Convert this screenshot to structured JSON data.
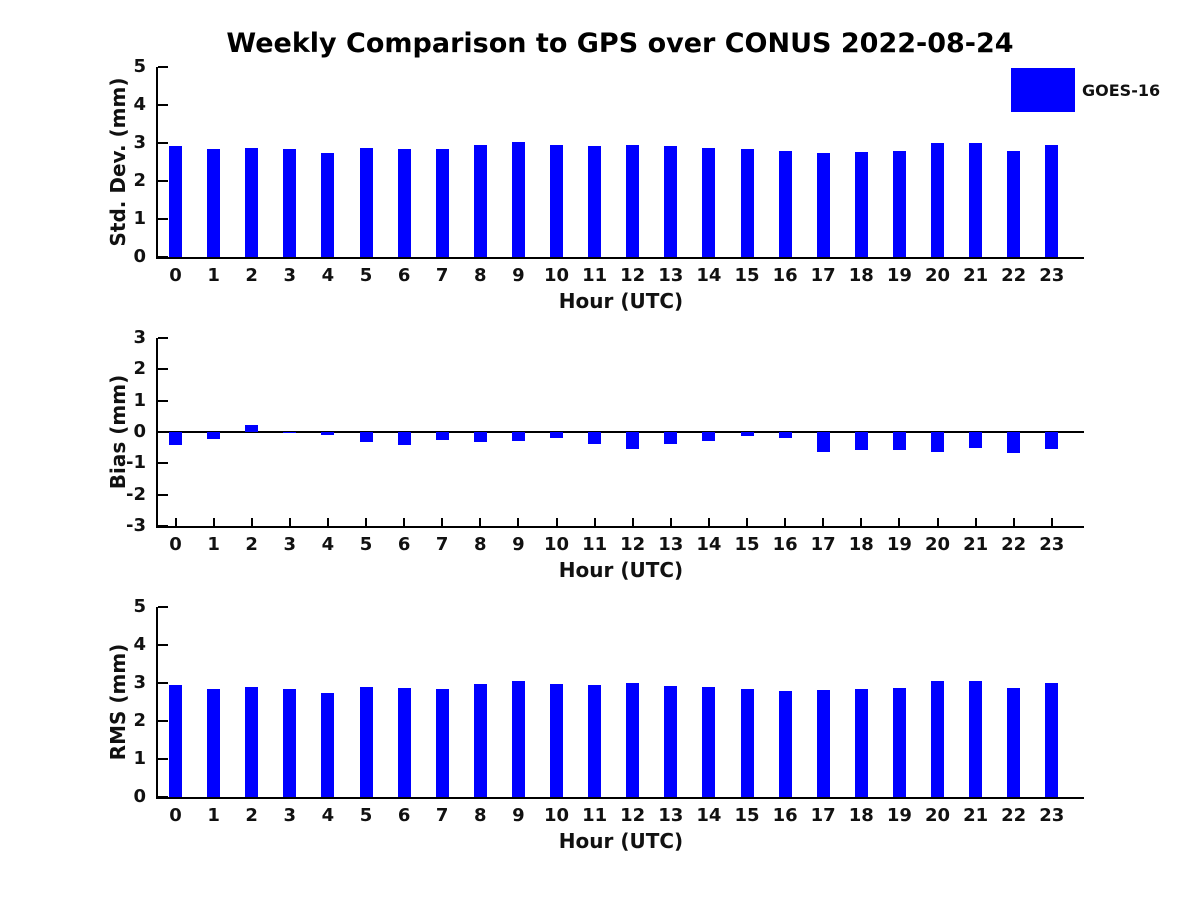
{
  "title": "Weekly Comparison to GPS over CONUS 2022-08-24",
  "legend": {
    "label": "GOES-16",
    "swatch_color": "#0000ff",
    "position": "upper right"
  },
  "colors": {
    "bar": "#0000ff",
    "axis": "#000000",
    "text": "#111111",
    "background": "#ffffff"
  },
  "chart_data": [
    {
      "type": "bar",
      "panel": "std-dev",
      "ylabel": "Std. Dev. (mm)",
      "xlabel": "Hour (UTC)",
      "ylim": [
        0,
        5
      ],
      "yticks": [
        0,
        1,
        2,
        3,
        4,
        5
      ],
      "grid": false,
      "categories": [
        0,
        1,
        2,
        3,
        4,
        5,
        6,
        7,
        8,
        9,
        10,
        11,
        12,
        13,
        14,
        15,
        16,
        17,
        18,
        19,
        20,
        21,
        22,
        23
      ],
      "series": [
        {
          "name": "GOES-16",
          "values": [
            2.93,
            2.83,
            2.88,
            2.85,
            2.74,
            2.88,
            2.84,
            2.84,
            2.96,
            3.03,
            2.96,
            2.93,
            2.96,
            2.91,
            2.88,
            2.83,
            2.79,
            2.75,
            2.77,
            2.8,
            2.99,
            3.0,
            2.79,
            2.94
          ]
        }
      ]
    },
    {
      "type": "bar",
      "panel": "bias",
      "ylabel": "Bias (mm)",
      "xlabel": "Hour (UTC)",
      "ylim": [
        -3,
        3
      ],
      "yticks": [
        3,
        2,
        1,
        0,
        -1,
        -2,
        -3
      ],
      "grid": false,
      "categories": [
        0,
        1,
        2,
        3,
        4,
        5,
        6,
        7,
        8,
        9,
        10,
        11,
        12,
        13,
        14,
        15,
        16,
        17,
        18,
        19,
        20,
        21,
        22,
        23
      ],
      "series": [
        {
          "name": "GOES-16",
          "values": [
            -0.4,
            -0.21,
            0.22,
            -0.02,
            -0.1,
            -0.32,
            -0.42,
            -0.27,
            -0.33,
            -0.3,
            -0.19,
            -0.38,
            -0.54,
            -0.37,
            -0.3,
            -0.13,
            -0.18,
            -0.64,
            -0.56,
            -0.59,
            -0.64,
            -0.51,
            -0.67,
            -0.53
          ]
        }
      ]
    },
    {
      "type": "bar",
      "panel": "rms",
      "ylabel": "RMS (mm)",
      "xlabel": "Hour (UTC)",
      "ylim": [
        0,
        5
      ],
      "yticks": [
        0,
        1,
        2,
        3,
        4,
        5
      ],
      "grid": false,
      "categories": [
        0,
        1,
        2,
        3,
        4,
        5,
        6,
        7,
        8,
        9,
        10,
        11,
        12,
        13,
        14,
        15,
        16,
        17,
        18,
        19,
        20,
        21,
        22,
        23
      ],
      "series": [
        {
          "name": "GOES-16",
          "values": [
            2.96,
            2.84,
            2.9,
            2.85,
            2.74,
            2.9,
            2.87,
            2.85,
            2.98,
            3.04,
            2.97,
            2.95,
            3.0,
            2.93,
            2.9,
            2.83,
            2.8,
            2.82,
            2.83,
            2.86,
            3.06,
            3.04,
            2.87,
            2.99
          ]
        }
      ]
    }
  ]
}
